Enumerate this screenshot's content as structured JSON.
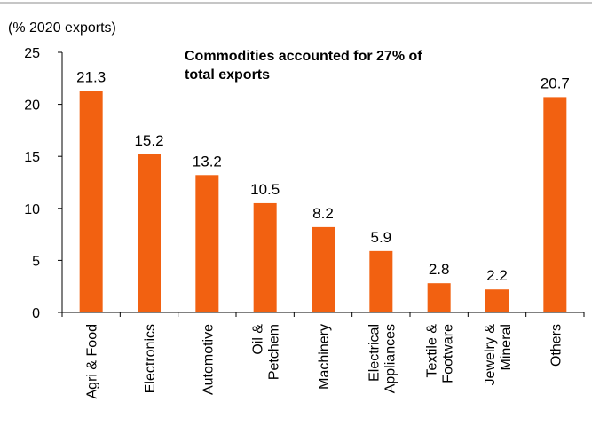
{
  "chart_data": {
    "type": "bar",
    "ylabel": "(% 2020 exports)",
    "annotation": [
      "Commodities accounted for 27% of",
      "total exports"
    ],
    "categories": [
      [
        "Agri & Food"
      ],
      [
        "Electronics"
      ],
      [
        "Automotive"
      ],
      [
        "Oil &",
        "Petchem"
      ],
      [
        "Machinery"
      ],
      [
        "Electrical",
        "Appliances"
      ],
      [
        "Textile &",
        "Footware"
      ],
      [
        "Jewelry &",
        "Mineral"
      ],
      [
        "Others"
      ]
    ],
    "values": [
      21.3,
      15.2,
      13.2,
      10.5,
      8.2,
      5.9,
      2.8,
      2.2,
      20.7
    ],
    "value_labels": [
      "21.3",
      "15.2",
      "13.2",
      "10.5",
      "8.2",
      "5.9",
      "2.8",
      "2.2",
      "20.7"
    ],
    "ylim": [
      0,
      25
    ],
    "yticks": [
      "0",
      "5",
      "10",
      "15",
      "20",
      "25"
    ],
    "bar_color": "#F26111",
    "grid": false
  }
}
